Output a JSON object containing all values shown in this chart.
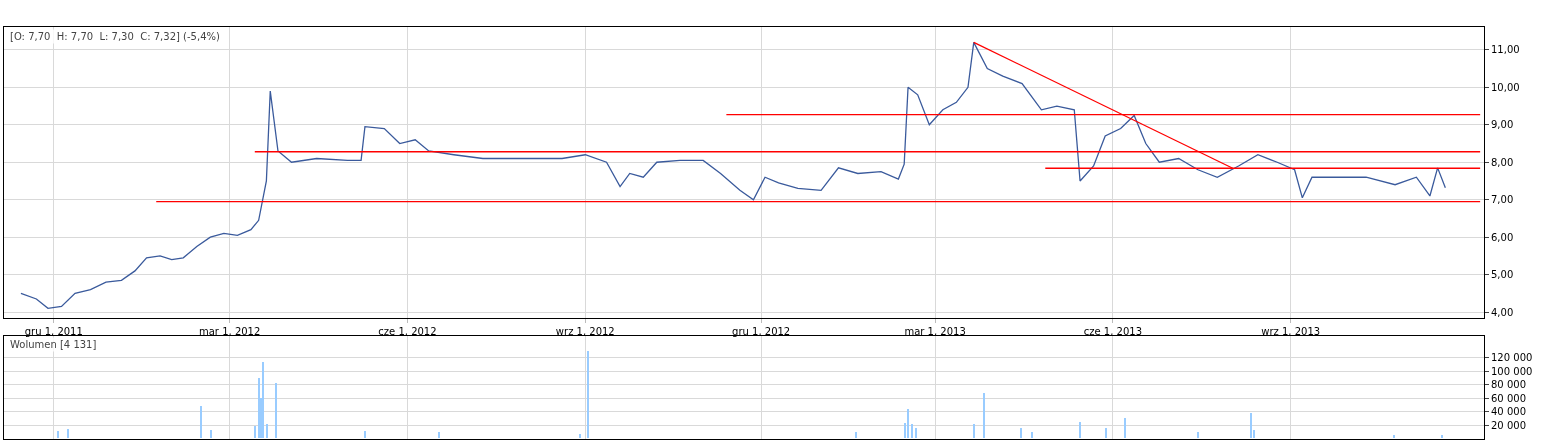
{
  "chart_data": [
    {
      "type": "line",
      "title": "[O: 7,70  H: 7,70  L: 7,30  C: 7,32] (-5,4%)",
      "x": [
        "2011-11-14",
        "2011-11-22",
        "2011-11-28",
        "2011-12-05",
        "2011-12-12",
        "2011-12-20",
        "2011-12-28",
        "2012-01-05",
        "2012-01-12",
        "2012-01-18",
        "2012-01-25",
        "2012-01-31",
        "2012-02-06",
        "2012-02-13",
        "2012-02-20",
        "2012-02-27",
        "2012-03-05",
        "2012-03-12",
        "2012-03-16",
        "2012-03-20",
        "2012-03-22",
        "2012-03-26",
        "2012-04-02",
        "2012-04-15",
        "2012-05-01",
        "2012-05-08",
        "2012-05-10",
        "2012-05-20",
        "2012-05-28",
        "2012-06-05",
        "2012-06-12",
        "2012-06-25",
        "2012-07-10",
        "2012-07-30",
        "2012-08-20",
        "2012-09-01",
        "2012-09-12",
        "2012-09-19",
        "2012-09-24",
        "2012-10-01",
        "2012-10-08",
        "2012-10-20",
        "2012-11-01",
        "2012-11-10",
        "2012-11-20",
        "2012-11-27",
        "2012-12-03",
        "2012-12-10",
        "2012-12-20",
        "2013-01-01",
        "2013-01-10",
        "2013-01-20",
        "2013-02-01",
        "2013-02-10",
        "2013-02-13",
        "2013-02-15",
        "2013-02-20",
        "2013-02-26",
        "2013-03-05",
        "2013-03-12",
        "2013-03-18",
        "2013-03-21",
        "2013-03-28",
        "2013-04-05",
        "2013-04-15",
        "2013-04-25",
        "2013-05-03",
        "2013-05-12",
        "2013-05-15",
        "2013-05-22",
        "2013-05-28",
        "2013-06-05",
        "2013-06-12",
        "2013-06-18",
        "2013-06-25",
        "2013-07-05",
        "2013-07-15",
        "2013-07-25",
        "2013-08-05",
        "2013-08-15",
        "2013-08-25",
        "2013-09-03",
        "2013-09-07",
        "2013-09-12",
        "2013-09-25",
        "2013-10-10",
        "2013-10-25",
        "2013-11-05",
        "2013-11-12",
        "2013-11-16",
        "2013-11-20"
      ],
      "series": [
        {
          "color": "#3a5a9c",
          "values": [
            4.5,
            4.35,
            4.1,
            4.15,
            4.5,
            4.6,
            4.8,
            4.85,
            5.1,
            5.45,
            5.5,
            5.4,
            5.45,
            5.75,
            6.0,
            6.1,
            6.05,
            6.2,
            6.45,
            7.5,
            9.9,
            8.3,
            8.0,
            8.1,
            8.05,
            8.05,
            8.95,
            8.9,
            8.5,
            8.6,
            8.3,
            8.2,
            8.1,
            8.1,
            8.1,
            8.2,
            8.0,
            7.35,
            7.7,
            7.6,
            8.0,
            8.05,
            8.05,
            7.7,
            7.25,
            7.0,
            7.6,
            7.45,
            7.3,
            7.25,
            7.85,
            7.7,
            7.75,
            7.55,
            7.95,
            10.0,
            9.8,
            9.0,
            9.4,
            9.6,
            10.0,
            11.2,
            10.5,
            10.3,
            10.1,
            9.4,
            9.5,
            9.4,
            7.5,
            7.9,
            8.7,
            8.9,
            9.25,
            8.5,
            8.0,
            8.1,
            7.8,
            7.6,
            7.9,
            8.2,
            8.0,
            7.8,
            7.05,
            7.6,
            7.6,
            7.6,
            7.4,
            7.6,
            7.1,
            7.85,
            7.32
          ]
        },
        {
          "color": "#ff0000",
          "x": [
            "2012-01-23",
            "2013-12-08"
          ],
          "values": [
            6.95,
            6.95
          ]
        },
        {
          "color": "#ff0000",
          "x": [
            "2012-03-14",
            "2013-12-08"
          ],
          "values": [
            8.28,
            8.28
          ]
        },
        {
          "color": "#ff0000",
          "x": [
            "2012-11-13",
            "2013-12-08"
          ],
          "values": [
            9.27,
            9.27
          ]
        },
        {
          "color": "#ff0000",
          "x": [
            "2013-04-27",
            "2013-12-08"
          ],
          "values": [
            7.84,
            7.84
          ]
        },
        {
          "color": "#ff0000",
          "x": [
            "2013-03-21",
            "2013-08-02"
          ],
          "values": [
            11.2,
            7.84
          ]
        }
      ],
      "xlim": [
        "2011-11-05",
        "2013-12-10"
      ],
      "xticks": [
        {
          "value": "2011-12-01",
          "label": "gru 1, 2011"
        },
        {
          "value": "2012-03-01",
          "label": "mar 1, 2012"
        },
        {
          "value": "2012-06-01",
          "label": "cze 1, 2012"
        },
        {
          "value": "2012-09-01",
          "label": "wrz 1, 2012"
        },
        {
          "value": "2012-12-01",
          "label": "gru 1, 2012"
        },
        {
          "value": "2013-03-01",
          "label": "mar 1, 2013"
        },
        {
          "value": "2013-06-01",
          "label": "cze 1, 2013"
        },
        {
          "value": "2013-09-01",
          "label": "wrz 1, 2013"
        }
      ],
      "ylim": [
        3.85,
        11.6
      ],
      "yticks": [
        {
          "value": 4,
          "label": "4,00"
        },
        {
          "value": 5,
          "label": "5,00"
        },
        {
          "value": 6,
          "label": "6,00"
        },
        {
          "value": 7,
          "label": "7,00"
        },
        {
          "value": 8,
          "label": "8,00"
        },
        {
          "value": 9,
          "label": "9,00"
        },
        {
          "value": 10,
          "label": "10,00"
        },
        {
          "value": 11,
          "label": "11,00"
        }
      ],
      "grid": true,
      "marker": "none",
      "line_style": "solid"
    },
    {
      "type": "bar",
      "title": "Wolumen [4 131]",
      "x": [
        "2011-12-03",
        "2011-12-08",
        "2012-02-15",
        "2012-02-20",
        "2012-03-14",
        "2012-03-16",
        "2012-03-17",
        "2012-03-18",
        "2012-03-20",
        "2012-03-25",
        "2012-05-10",
        "2012-06-17",
        "2012-08-29",
        "2012-09-02",
        "2013-01-19",
        "2013-02-13",
        "2013-02-15",
        "2013-02-17",
        "2013-02-19",
        "2013-03-21",
        "2013-03-26",
        "2013-04-14",
        "2013-04-20",
        "2013-05-15",
        "2013-05-28",
        "2013-06-07",
        "2013-07-15",
        "2013-08-11",
        "2013-08-13",
        "2013-10-24",
        "2013-11-18"
      ],
      "series": [
        {
          "color": "#99ccff",
          "values": [
            11000,
            14000,
            48000,
            13000,
            19000,
            89000,
            60000,
            113000,
            21000,
            83000,
            11000,
            9000,
            7000,
            130000,
            9000,
            23000,
            44000,
            21000,
            16000,
            21000,
            67000,
            16000,
            9000,
            25000,
            15000,
            31000,
            9000,
            38000,
            12000,
            5000,
            5000
          ]
        }
      ],
      "xlim": [
        "2011-11-05",
        "2013-12-10"
      ],
      "xticks": [
        {
          "value": "2011-12-01",
          "label": null
        },
        {
          "value": "2012-03-01",
          "label": null
        },
        {
          "value": "2012-06-01",
          "label": null
        },
        {
          "value": "2012-09-01",
          "label": null
        },
        {
          "value": "2012-12-01",
          "label": null
        },
        {
          "value": "2013-03-01",
          "label": null
        },
        {
          "value": "2013-06-01",
          "label": null
        },
        {
          "value": "2013-09-01",
          "label": null
        }
      ],
      "ylim": [
        0,
        152000
      ],
      "yticks": [
        {
          "value": 20000,
          "label": "20 000"
        },
        {
          "value": 40000,
          "label": "40 000"
        },
        {
          "value": 60000,
          "label": "60 000"
        },
        {
          "value": 80000,
          "label": "80 000"
        },
        {
          "value": 100000,
          "label": "100 000"
        },
        {
          "value": 120000,
          "label": "120 000"
        }
      ],
      "grid": true,
      "tick_labels": "y"
    }
  ]
}
